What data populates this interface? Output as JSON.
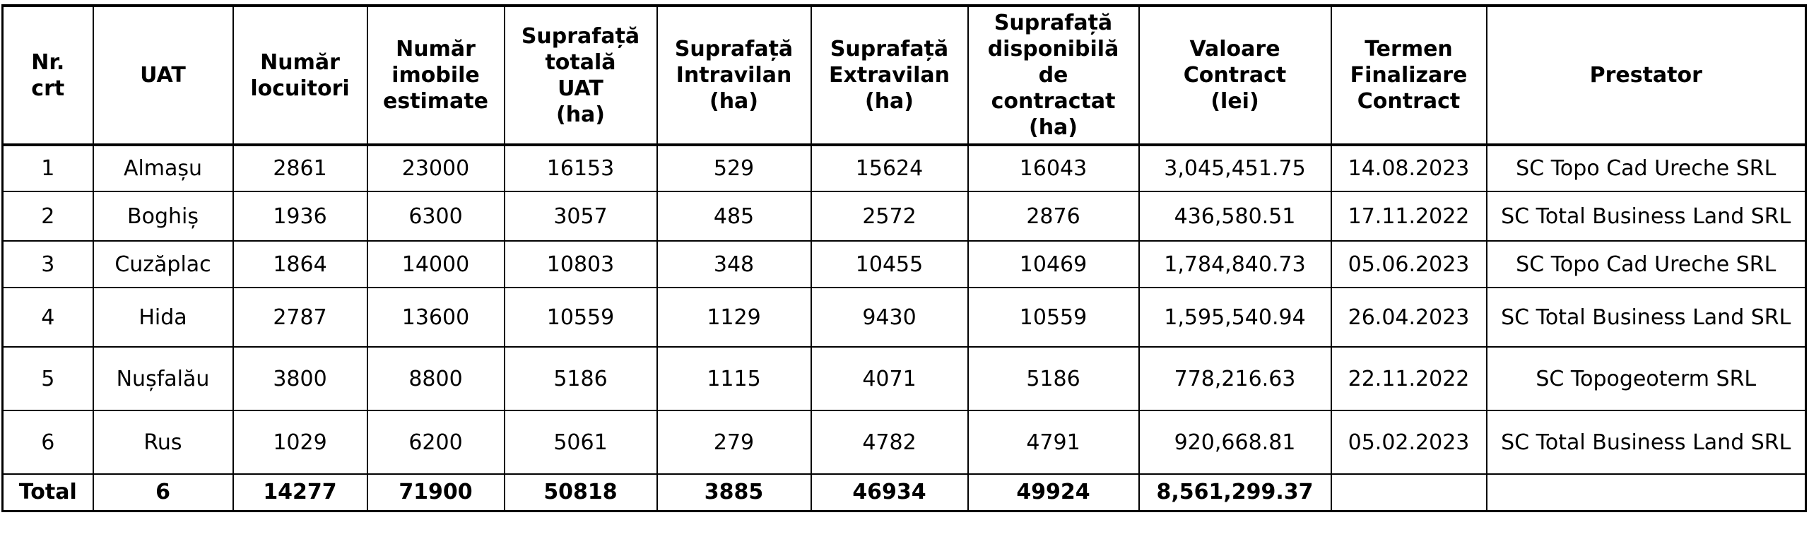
{
  "table": {
    "headers": [
      "Nr.\ncrt",
      "UAT",
      "Număr\nlocuitori",
      "Număr\nimobile\nestimate",
      "Suprafață\ntotală\nUAT\n(ha)",
      "Suprafață\nIntravilan\n(ha)",
      "Suprafață\nExtravilan\n(ha)",
      "Suprafață\ndisponibilă\nde\ncontractat\n(ha)",
      "Valoare\nContract\n(lei)",
      "Termen\nFinalizare\nContract",
      "Prestator"
    ],
    "rows": [
      [
        "1",
        "Almașu",
        "2861",
        "23000",
        "16153",
        "529",
        "15624",
        "16043",
        "3,045,451.75",
        "14.08.2023",
        "SC Topo Cad Ureche SRL"
      ],
      [
        "2",
        "Boghiș",
        "1936",
        "6300",
        "3057",
        "485",
        "2572",
        "2876",
        "436,580.51",
        "17.11.2022",
        "SC Total Business Land SRL"
      ],
      [
        "3",
        "Cuzăplac",
        "1864",
        "14000",
        "10803",
        "348",
        "10455",
        "10469",
        "1,784,840.73",
        "05.06.2023",
        "SC Topo Cad Ureche SRL"
      ],
      [
        "4",
        "Hida",
        "2787",
        "13600",
        "10559",
        "1129",
        "9430",
        "10559",
        "1,595,540.94",
        "26.04.2023",
        "SC Total Business Land SRL"
      ],
      [
        "5",
        "Nușfalău",
        "3800",
        "8800",
        "5186",
        "1115",
        "4071",
        "5186",
        "778,216.63",
        "22.11.2022",
        "SC Topogeoterm SRL"
      ],
      [
        "6",
        "Rus",
        "1029",
        "6200",
        "5061",
        "279",
        "4782",
        "4791",
        "920,668.81",
        "05.02.2023",
        "SC Total Business Land SRL"
      ]
    ],
    "total": [
      "Total",
      "6",
      "14277",
      "71900",
      "50818",
      "3885",
      "46934",
      "49924",
      "8,561,299.37",
      "",
      ""
    ]
  }
}
